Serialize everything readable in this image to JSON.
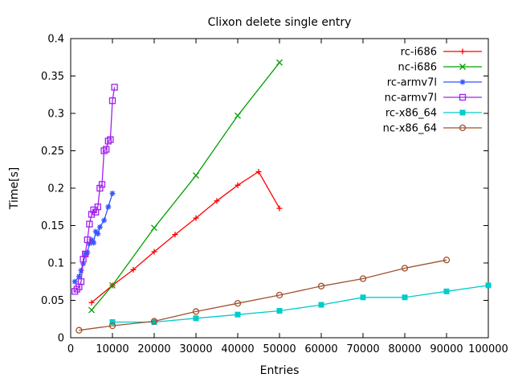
{
  "chart_data": {
    "type": "line",
    "title": "Clixon delete single entry",
    "xlabel": "Entries",
    "ylabel": "Time[s]",
    "xlim": [
      0,
      100000
    ],
    "ylim": [
      0,
      0.4
    ],
    "xticks": [
      0,
      10000,
      20000,
      30000,
      40000,
      50000,
      60000,
      70000,
      80000,
      90000,
      100000
    ],
    "yticks": [
      0,
      0.05,
      0.1,
      0.15,
      0.2,
      0.25,
      0.3,
      0.35,
      0.4
    ],
    "grid": false,
    "legend_position": "top-right-inside",
    "series": [
      {
        "name": "rc-i686",
        "color": "#ff0000",
        "marker": "plus",
        "points": [
          [
            5000,
            0.047
          ],
          [
            10000,
            0.07
          ],
          [
            15000,
            0.091
          ],
          [
            20000,
            0.115
          ],
          [
            25000,
            0.138
          ],
          [
            30000,
            0.16
          ],
          [
            35000,
            0.183
          ],
          [
            40000,
            0.204
          ],
          [
            45000,
            0.222
          ],
          [
            50000,
            0.173
          ]
        ]
      },
      {
        "name": "nc-i686",
        "color": "#00a000",
        "marker": "cross",
        "points": [
          [
            5000,
            0.037
          ],
          [
            10000,
            0.07
          ],
          [
            20000,
            0.147
          ],
          [
            30000,
            0.217
          ],
          [
            40000,
            0.297
          ],
          [
            50000,
            0.368
          ]
        ]
      },
      {
        "name": "rc-armv7l",
        "color": "#3355ff",
        "marker": "asterisk",
        "points": [
          [
            1000,
            0.075
          ],
          [
            2000,
            0.082
          ],
          [
            2500,
            0.09
          ],
          [
            3000,
            0.099
          ],
          [
            3500,
            0.112
          ],
          [
            4000,
            0.114
          ],
          [
            4500,
            0.126
          ],
          [
            5000,
            0.131
          ],
          [
            5500,
            0.127
          ],
          [
            6000,
            0.142
          ],
          [
            6500,
            0.139
          ],
          [
            7000,
            0.148
          ],
          [
            8000,
            0.157
          ],
          [
            9000,
            0.175
          ],
          [
            10000,
            0.193
          ]
        ]
      },
      {
        "name": "nc-armv7l",
        "color": "#a020f0",
        "marker": "square-open",
        "points": [
          [
            1000,
            0.062
          ],
          [
            1500,
            0.065
          ],
          [
            2000,
            0.068
          ],
          [
            2500,
            0.075
          ],
          [
            3000,
            0.105
          ],
          [
            3500,
            0.112
          ],
          [
            4000,
            0.131
          ],
          [
            4500,
            0.152
          ],
          [
            5000,
            0.165
          ],
          [
            5500,
            0.171
          ],
          [
            6000,
            0.168
          ],
          [
            6500,
            0.175
          ],
          [
            7000,
            0.2
          ],
          [
            7500,
            0.205
          ],
          [
            8000,
            0.25
          ],
          [
            8500,
            0.252
          ],
          [
            9000,
            0.263
          ],
          [
            9500,
            0.265
          ],
          [
            10000,
            0.317
          ],
          [
            10500,
            0.335
          ]
        ]
      },
      {
        "name": "rc-x86_64",
        "color": "#00cccc",
        "marker": "square-filled",
        "points": [
          [
            10000,
            0.021
          ],
          [
            20000,
            0.021
          ],
          [
            30000,
            0.026
          ],
          [
            40000,
            0.031
          ],
          [
            50000,
            0.036
          ],
          [
            60000,
            0.044
          ],
          [
            70000,
            0.054
          ],
          [
            80000,
            0.054
          ],
          [
            90000,
            0.062
          ],
          [
            100000,
            0.07
          ]
        ]
      },
      {
        "name": "nc-x86_64",
        "color": "#a0522d",
        "marker": "circle-open",
        "points": [
          [
            2000,
            0.01
          ],
          [
            10000,
            0.016
          ],
          [
            20000,
            0.022
          ],
          [
            30000,
            0.035
          ],
          [
            40000,
            0.046
          ],
          [
            50000,
            0.057
          ],
          [
            60000,
            0.069
          ],
          [
            70000,
            0.079
          ],
          [
            80000,
            0.093
          ],
          [
            90000,
            0.104
          ]
        ]
      }
    ]
  }
}
